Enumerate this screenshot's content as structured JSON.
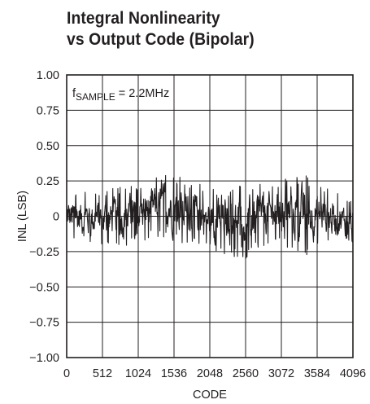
{
  "chart_data": {
    "type": "line",
    "title_line1": "Integral Nonlinearity",
    "title_line2": "vs Output Code (Bipolar)",
    "xlabel": "CODE",
    "ylabel": "INL (LSB)",
    "annotation": {
      "prefix": "f",
      "subscript": "SAMPLE",
      "suffix": " = 2.2MHz"
    },
    "xlim": [
      0,
      4096
    ],
    "ylim": [
      -1.0,
      1.0
    ],
    "x_ticks": [
      0,
      512,
      1024,
      1536,
      2048,
      2560,
      3072,
      3584,
      4096
    ],
    "x_tick_labels": [
      "0",
      "512",
      "1024",
      "1536",
      "2048",
      "2560",
      "3072",
      "3584",
      "4096"
    ],
    "y_ticks": [
      1.0,
      0.75,
      0.5,
      0.25,
      0,
      -0.25,
      -0.5,
      -0.75,
      -1.0
    ],
    "y_tick_labels": [
      "1.00",
      "0.75",
      "0.50",
      "0.25",
      "0",
      "−0.25",
      "−0.50",
      "−0.75",
      "−1.00"
    ],
    "grid": true,
    "series": [
      {
        "style": "noisy trace, envelope approx",
        "x": [
          0,
          256,
          512,
          768,
          1024,
          1280,
          1408,
          1536,
          1792,
          2048,
          2304,
          2560,
          2816,
          3072,
          3328,
          3456,
          3584,
          3840,
          4096
        ],
        "upper": [
          0.19,
          0.2,
          0.18,
          0.21,
          0.23,
          0.3,
          0.33,
          0.3,
          0.25,
          0.2,
          0.21,
          0.24,
          0.25,
          0.27,
          0.28,
          0.3,
          0.23,
          0.18,
          0.1
        ],
        "lower": [
          -0.2,
          -0.22,
          -0.21,
          -0.23,
          -0.18,
          -0.15,
          -0.17,
          -0.19,
          -0.2,
          -0.24,
          -0.28,
          -0.3,
          -0.22,
          -0.2,
          -0.26,
          -0.28,
          -0.2,
          -0.21,
          -0.19
        ]
      }
    ]
  }
}
